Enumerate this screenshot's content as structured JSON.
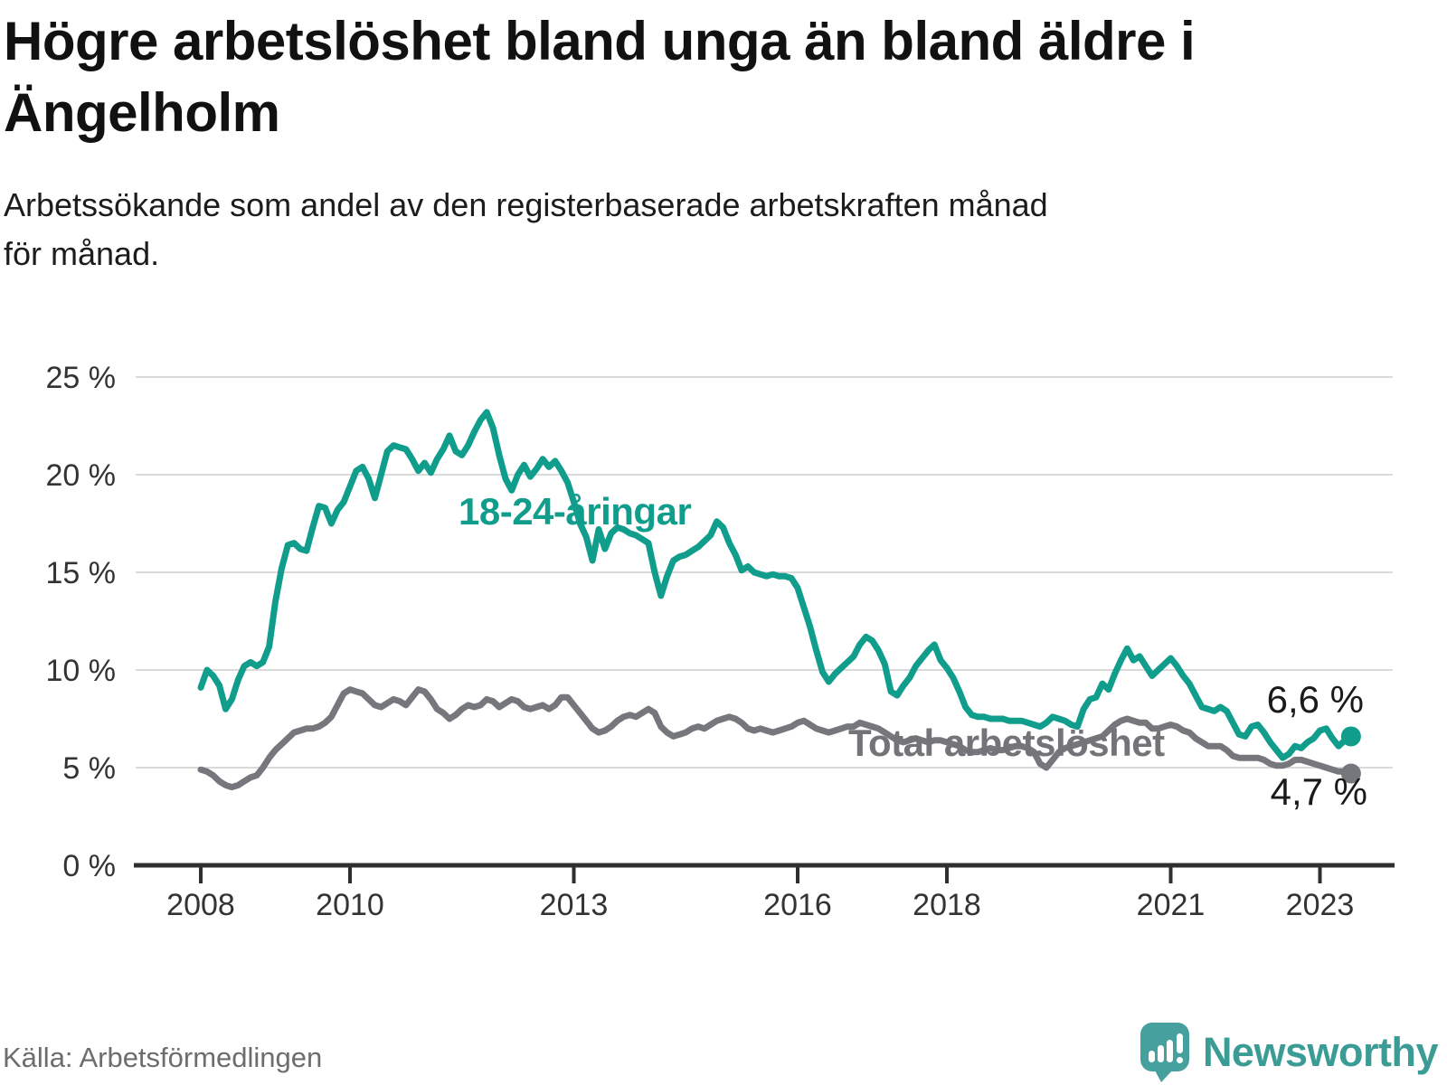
{
  "header": {
    "title": "Högre arbetslöshet bland unga än bland äldre i\nÄngelholm",
    "subtitle": "Arbetssökande som andel av den registerbaserade arbetskraften månad\nför månad."
  },
  "footer": {
    "source": "Källa: Arbetsförmedlingen",
    "brand": "Newsworthy"
  },
  "colors": {
    "youth_line": "#109d8c",
    "total_line": "#76767d",
    "total_label": "#737378",
    "end_label_text": "#1a1a1a",
    "gridline": "#dadada",
    "axis": "#2f2f2f",
    "tick_label": "#333333",
    "brand_teal": "#46a09e"
  },
  "chart_data": {
    "type": "line",
    "title": "Högre arbetslöshet bland unga än bland äldre i Ängelholm",
    "subtitle": "Arbetssökande som andel av den registerbaserade arbetskraften månad för månad.",
    "xlabel": "",
    "ylabel": "",
    "grid": true,
    "legend_position": "inline-labels",
    "ylim": [
      0,
      25
    ],
    "yticks": [
      0,
      5,
      10,
      15,
      20,
      25
    ],
    "ytick_labels": [
      "0 %",
      "5 %",
      "10 %",
      "15 %",
      "20 %",
      "25 %"
    ],
    "xticks": [
      2008,
      2010,
      2013,
      2016,
      2018,
      2021,
      2023
    ],
    "xtick_labels": [
      "2008",
      "2010",
      "2013",
      "2016",
      "2018",
      "2021",
      "2023"
    ],
    "x_start_year": 2008,
    "x_start_month": 1,
    "x_end_year": 2023,
    "x_end_month": 6,
    "x_cadence": "monthly",
    "series": [
      {
        "name": "18-24-åringar",
        "color": "#109d8c",
        "end_value": 6.6,
        "end_label": "6,6 %",
        "values": [
          9.1,
          10.0,
          9.7,
          9.2,
          8.0,
          8.5,
          9.5,
          10.2,
          10.4,
          10.2,
          10.4,
          11.2,
          13.5,
          15.2,
          16.4,
          16.5,
          16.2,
          16.1,
          17.3,
          18.4,
          18.3,
          17.5,
          18.2,
          18.6,
          19.4,
          20.2,
          20.4,
          19.8,
          18.8,
          20.0,
          21.2,
          21.5,
          21.4,
          21.3,
          20.8,
          20.2,
          20.6,
          20.1,
          20.8,
          21.3,
          22.0,
          21.2,
          21.0,
          21.5,
          22.2,
          22.8,
          23.2,
          22.4,
          21.0,
          19.8,
          19.2,
          20.0,
          20.5,
          19.9,
          20.3,
          20.8,
          20.4,
          20.7,
          20.2,
          19.6,
          18.6,
          17.5,
          16.8,
          15.6,
          17.2,
          16.2,
          17.0,
          17.3,
          17.2,
          17.0,
          16.9,
          16.7,
          16.5,
          15.0,
          13.8,
          14.8,
          15.6,
          15.8,
          15.9,
          16.1,
          16.3,
          16.6,
          16.9,
          17.6,
          17.3,
          16.5,
          15.9,
          15.1,
          15.3,
          15.0,
          14.9,
          14.8,
          14.9,
          14.8,
          14.8,
          14.7,
          14.2,
          13.2,
          12.2,
          11.0,
          9.9,
          9.4,
          9.8,
          10.1,
          10.4,
          10.7,
          11.3,
          11.7,
          11.5,
          11.0,
          10.3,
          8.9,
          8.7,
          9.2,
          9.6,
          10.2,
          10.6,
          11.0,
          11.3,
          10.5,
          10.1,
          9.6,
          8.9,
          8.1,
          7.7,
          7.6,
          7.6,
          7.5,
          7.5,
          7.5,
          7.4,
          7.4,
          7.4,
          7.3,
          7.2,
          7.1,
          7.3,
          7.6,
          7.5,
          7.4,
          7.2,
          7.1,
          8.0,
          8.5,
          8.6,
          9.3,
          9.0,
          9.8,
          10.5,
          11.1,
          10.5,
          10.7,
          10.2,
          9.7,
          10.0,
          10.3,
          10.6,
          10.2,
          9.7,
          9.3,
          8.7,
          8.1,
          8.0,
          7.9,
          8.1,
          7.9,
          7.3,
          6.7,
          6.6,
          7.1,
          7.2,
          6.8,
          6.3,
          5.9,
          5.5,
          5.7,
          6.1,
          6.0,
          6.3,
          6.5,
          6.9,
          7.0,
          6.5,
          6.1,
          6.4,
          6.6
        ]
      },
      {
        "name": "Total arbetslöshet",
        "color": "#76767d",
        "end_value": 4.7,
        "end_label": "4,7 %",
        "values": [
          4.9,
          4.8,
          4.6,
          4.3,
          4.1,
          4.0,
          4.1,
          4.3,
          4.5,
          4.6,
          5.0,
          5.5,
          5.9,
          6.2,
          6.5,
          6.8,
          6.9,
          7.0,
          7.0,
          7.1,
          7.3,
          7.6,
          8.2,
          8.8,
          9.0,
          8.9,
          8.8,
          8.5,
          8.2,
          8.1,
          8.3,
          8.5,
          8.4,
          8.2,
          8.6,
          9.0,
          8.9,
          8.5,
          8.0,
          7.8,
          7.5,
          7.7,
          8.0,
          8.2,
          8.1,
          8.2,
          8.5,
          8.4,
          8.1,
          8.3,
          8.5,
          8.4,
          8.1,
          8.0,
          8.1,
          8.2,
          8.0,
          8.2,
          8.6,
          8.6,
          8.2,
          7.8,
          7.4,
          7.0,
          6.8,
          6.9,
          7.1,
          7.4,
          7.6,
          7.7,
          7.6,
          7.8,
          8.0,
          7.8,
          7.1,
          6.8,
          6.6,
          6.7,
          6.8,
          7.0,
          7.1,
          7.0,
          7.2,
          7.4,
          7.5,
          7.6,
          7.5,
          7.3,
          7.0,
          6.9,
          7.0,
          6.9,
          6.8,
          6.9,
          7.0,
          7.1,
          7.3,
          7.4,
          7.2,
          7.0,
          6.9,
          6.8,
          6.9,
          7.0,
          7.1,
          7.1,
          7.3,
          7.2,
          7.1,
          7.0,
          6.8,
          6.6,
          6.4,
          6.3,
          6.4,
          6.5,
          6.4,
          6.3,
          6.4,
          6.4,
          6.3,
          6.2,
          6.1,
          5.9,
          5.8,
          5.8,
          5.9,
          6.0,
          5.9,
          5.9,
          6.0,
          6.1,
          6.1,
          6.0,
          5.8,
          5.2,
          5.0,
          5.4,
          5.8,
          6.0,
          6.1,
          6.2,
          6.3,
          6.4,
          6.5,
          6.6,
          6.9,
          7.2,
          7.4,
          7.5,
          7.4,
          7.3,
          7.3,
          7.0,
          7.0,
          7.1,
          7.2,
          7.1,
          6.9,
          6.8,
          6.5,
          6.3,
          6.1,
          6.1,
          6.1,
          5.9,
          5.6,
          5.5,
          5.5,
          5.5,
          5.5,
          5.4,
          5.2,
          5.1,
          5.1,
          5.2,
          5.4,
          5.4,
          5.3,
          5.2,
          5.1,
          5.0,
          4.9,
          4.8,
          4.8,
          4.7
        ]
      }
    ]
  }
}
